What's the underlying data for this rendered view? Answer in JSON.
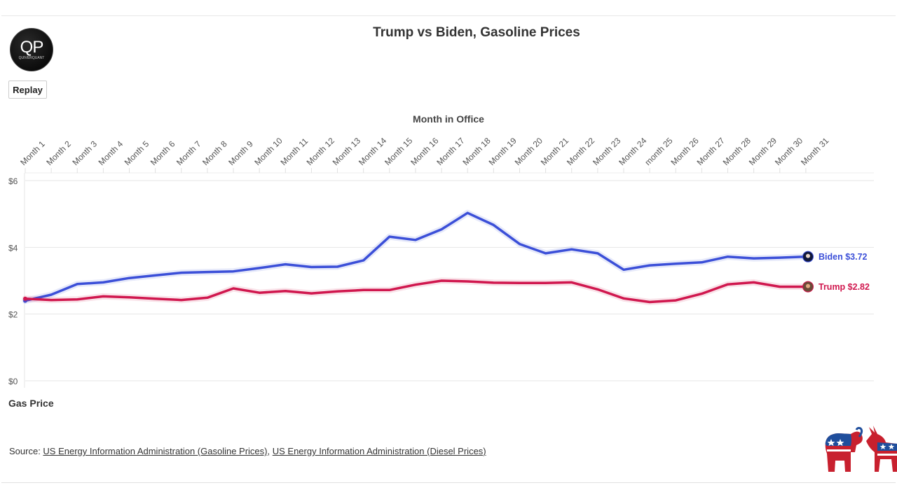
{
  "header": {
    "title": "Trump vs Biden, Gasoline Prices",
    "logo_text": "QP",
    "logo_subtext": "QUIVERQUANT"
  },
  "controls": {
    "replay_label": "Replay"
  },
  "axis_titles": {
    "x": "Month in Office",
    "y": "Gas Price"
  },
  "source": {
    "prefix": "Source: ",
    "link1": "US Energy Information Administration (Gasoline Prices)",
    "separator": ", ",
    "link2": "US Energy Information Administration (Diesel Prices)"
  },
  "chart_data": {
    "type": "line",
    "title": "Trump vs Biden, Gasoline Prices",
    "xlabel": "Month in Office",
    "ylabel": "Gas Price",
    "categories": [
      "Month 1",
      "Month 2",
      "Month 3",
      "Month 4",
      "Month 5",
      "Month 6",
      "Month 7",
      "Month 8",
      "Month 9",
      "Month 10",
      "Month 11",
      "Month 12",
      "Month 13",
      "Month 14",
      "Month 15",
      "Month 16",
      "Month 17",
      "Month 18",
      "Month 19",
      "Month 20",
      "Month 21",
      "Month 22",
      "Month 23",
      "Month 24",
      "month 25",
      "Month 26",
      "Month 27",
      "Month 28",
      "Month 29",
      "Month 30",
      "Month 31"
    ],
    "ylim": [
      0,
      6
    ],
    "yticks": [
      0,
      2,
      4,
      6
    ],
    "ytick_labels": [
      "$0",
      "$2",
      "$4",
      "$6"
    ],
    "series": [
      {
        "name": "Biden",
        "color": "#3b4fd8",
        "end_label": "Biden $3.72",
        "values": [
          2.4,
          2.58,
          2.9,
          2.95,
          3.08,
          3.16,
          3.24,
          3.26,
          3.28,
          3.38,
          3.49,
          3.41,
          3.42,
          3.61,
          4.32,
          4.22,
          4.54,
          5.03,
          4.67,
          4.1,
          3.82,
          3.94,
          3.82,
          3.33,
          3.46,
          3.51,
          3.55,
          3.72,
          3.67,
          3.69,
          3.72
        ]
      },
      {
        "name": "Trump",
        "color": "#d0174e",
        "end_label": "Trump $2.82",
        "values": [
          2.46,
          2.42,
          2.44,
          2.53,
          2.5,
          2.46,
          2.42,
          2.49,
          2.77,
          2.64,
          2.69,
          2.62,
          2.68,
          2.72,
          2.72,
          2.88,
          3.0,
          2.98,
          2.94,
          2.93,
          2.93,
          2.95,
          2.74,
          2.47,
          2.36,
          2.41,
          2.61,
          2.89,
          2.95,
          2.82,
          2.82
        ]
      }
    ]
  }
}
